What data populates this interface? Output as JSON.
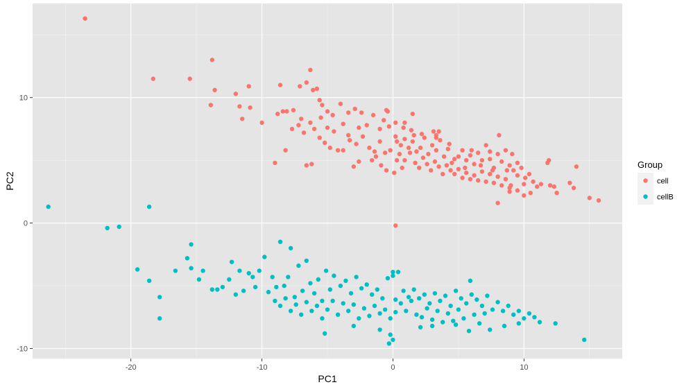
{
  "chart_data": {
    "type": "scatter",
    "xlabel": "PC1",
    "ylabel": "PC2",
    "xlim": [
      -27.5,
      17.5
    ],
    "ylim": [
      -10.8,
      17.5
    ],
    "x_ticks": [
      -20,
      -10,
      0,
      10
    ],
    "y_ticks": [
      -10,
      0,
      10
    ],
    "x_tick_labels": [
      "-20",
      "-10",
      "0",
      "10"
    ],
    "y_tick_labels": [
      "-10",
      "0",
      "10"
    ],
    "grid": true,
    "panel_background": "#e5e5e5",
    "grid_color": "#ffffff",
    "legend": {
      "title": "Group",
      "position": "right",
      "entries": [
        "cell",
        "cellB"
      ]
    },
    "series": [
      {
        "name": "cell",
        "color": "#f8766d",
        "points": [
          [
            -23.5,
            16.3
          ],
          [
            -18.3,
            11.5
          ],
          [
            -15.5,
            11.5
          ],
          [
            -13.8,
            13.0
          ],
          [
            -13.6,
            10.6
          ],
          [
            -13.9,
            9.4
          ],
          [
            -12.0,
            10.3
          ],
          [
            -11.0,
            10.9
          ],
          [
            -11.7,
            9.3
          ],
          [
            -10.9,
            9.2
          ],
          [
            -11.5,
            8.3
          ],
          [
            -10.0,
            8.0
          ],
          [
            -8.6,
            11.0
          ],
          [
            -8.8,
            8.7
          ],
          [
            -8.4,
            8.9
          ],
          [
            -8.1,
            8.9
          ],
          [
            -7.6,
            9.0
          ],
          [
            -7.1,
            10.9
          ],
          [
            -6.6,
            11.2
          ],
          [
            -6.3,
            12.2
          ],
          [
            -6.1,
            10.6
          ],
          [
            -5.8,
            10.7
          ],
          [
            -5.6,
            9.8
          ],
          [
            -5.4,
            9.4
          ],
          [
            -7.0,
            8.3
          ],
          [
            -7.7,
            7.5
          ],
          [
            -7.2,
            7.8
          ],
          [
            -6.8,
            7.2
          ],
          [
            -6.3,
            8.0
          ],
          [
            -6.0,
            7.5
          ],
          [
            -5.5,
            8.4
          ],
          [
            -5.0,
            8.9
          ],
          [
            -4.6,
            8.6
          ],
          [
            -4.0,
            9.5
          ],
          [
            -3.4,
            8.8
          ],
          [
            -2.9,
            9.1
          ],
          [
            -2.4,
            8.8
          ],
          [
            -5.0,
            7.6
          ],
          [
            -4.5,
            7.3
          ],
          [
            -3.8,
            7.9
          ],
          [
            -3.4,
            7.0
          ],
          [
            -2.6,
            7.6
          ],
          [
            -2.0,
            7.8
          ],
          [
            -1.5,
            8.6
          ],
          [
            -1.0,
            7.5
          ],
          [
            -0.7,
            8.2
          ],
          [
            -0.3,
            7.7
          ],
          [
            0.2,
            8.0
          ],
          [
            -0.5,
            9.0
          ],
          [
            -0.4,
            8.9
          ],
          [
            -5.6,
            6.8
          ],
          [
            -5.2,
            6.4
          ],
          [
            -4.8,
            6.0
          ],
          [
            -4.2,
            5.8
          ],
          [
            -3.8,
            5.8
          ],
          [
            -3.3,
            6.6
          ],
          [
            -2.8,
            6.3
          ],
          [
            -2.3,
            6.9
          ],
          [
            -1.8,
            6.0
          ],
          [
            -1.4,
            5.7
          ],
          [
            -1.0,
            6.5
          ],
          [
            -0.6,
            5.6
          ],
          [
            -0.2,
            5.8
          ],
          [
            -9.0,
            4.8
          ],
          [
            -8.2,
            5.8
          ],
          [
            -6.6,
            4.6
          ],
          [
            -6.2,
            4.7
          ],
          [
            -3.0,
            4.5
          ],
          [
            -2.6,
            4.9
          ],
          [
            -1.6,
            5.0
          ],
          [
            -1.3,
            5.3
          ],
          [
            -0.9,
            4.6
          ],
          [
            -0.5,
            4.2
          ],
          [
            0.1,
            4.0
          ],
          [
            0.7,
            4.4
          ],
          [
            0.3,
            5.0
          ],
          [
            0.3,
            6.5
          ],
          [
            0.6,
            6.2
          ],
          [
            0.9,
            6.7
          ],
          [
            1.2,
            6.0
          ],
          [
            1.5,
            6.5
          ],
          [
            1.8,
            5.7
          ],
          [
            2.1,
            6.0
          ],
          [
            2.4,
            6.8
          ],
          [
            2.7,
            5.5
          ],
          [
            3.0,
            6.2
          ],
          [
            3.3,
            5.8
          ],
          [
            3.6,
            6.6
          ],
          [
            3.9,
            5.3
          ],
          [
            4.2,
            5.9
          ],
          [
            0.5,
            5.5
          ],
          [
            0.9,
            5.0
          ],
          [
            1.3,
            5.6
          ],
          [
            1.7,
            4.8
          ],
          [
            2.0,
            4.4
          ],
          [
            2.3,
            5.2
          ],
          [
            2.6,
            4.7
          ],
          [
            2.9,
            4.2
          ],
          [
            3.2,
            4.9
          ],
          [
            3.5,
            4.5
          ],
          [
            3.8,
            3.9
          ],
          [
            4.1,
            4.6
          ],
          [
            4.4,
            4.2
          ],
          [
            4.7,
            5.1
          ],
          [
            0.9,
            8.0
          ],
          [
            1.4,
            7.4
          ],
          [
            1.6,
            7.0
          ],
          [
            2.2,
            7.1
          ],
          [
            3.1,
            7.3
          ],
          [
            3.3,
            7.0
          ],
          [
            1.5,
            8.7
          ],
          [
            0.2,
            6.9
          ],
          [
            0.8,
            7.6
          ],
          [
            5.0,
            5.3
          ],
          [
            5.3,
            5.8
          ],
          [
            5.6,
            5.0
          ],
          [
            5.9,
            5.4
          ],
          [
            6.2,
            4.7
          ],
          [
            6.5,
            5.6
          ],
          [
            6.8,
            5.0
          ],
          [
            7.1,
            6.2
          ],
          [
            7.4,
            5.1
          ],
          [
            7.7,
            4.4
          ],
          [
            8.0,
            5.5
          ],
          [
            8.3,
            4.9
          ],
          [
            8.6,
            5.8
          ],
          [
            8.9,
            4.6
          ],
          [
            5.0,
            4.3
          ],
          [
            5.3,
            3.6
          ],
          [
            5.6,
            4.0
          ],
          [
            5.9,
            3.5
          ],
          [
            6.2,
            3.8
          ],
          [
            6.5,
            3.4
          ],
          [
            6.8,
            4.1
          ],
          [
            7.1,
            3.3
          ],
          [
            7.4,
            3.9
          ],
          [
            7.7,
            3.2
          ],
          [
            8.0,
            3.7
          ],
          [
            8.3,
            3.0
          ],
          [
            8.6,
            3.5
          ],
          [
            8.9,
            2.8
          ],
          [
            9.2,
            4.2
          ],
          [
            9.5,
            3.8
          ],
          [
            9.8,
            4.4
          ],
          [
            10.1,
            3.6
          ],
          [
            10.4,
            3.9
          ],
          [
            10.7,
            3.3
          ],
          [
            11.0,
            2.9
          ],
          [
            11.3,
            3.1
          ],
          [
            9.0,
            3.0
          ],
          [
            9.5,
            2.6
          ],
          [
            10.0,
            2.2
          ],
          [
            10.5,
            2.4
          ],
          [
            8.0,
            1.6
          ],
          [
            8.9,
            2.5
          ],
          [
            12.0,
            3.0
          ],
          [
            12.3,
            2.9
          ],
          [
            12.5,
            2.4
          ],
          [
            13.5,
            3.2
          ],
          [
            13.8,
            2.8
          ],
          [
            14.0,
            4.5
          ],
          [
            11.8,
            4.8
          ],
          [
            11.9,
            5.0
          ],
          [
            8.1,
            7.0
          ],
          [
            9.1,
            5.5
          ],
          [
            9.5,
            4.8
          ],
          [
            6.0,
            5.8
          ],
          [
            4.3,
            6.3
          ],
          [
            3.5,
            7.3
          ],
          [
            15.0,
            2.0
          ],
          [
            15.7,
            1.8
          ],
          [
            0.2,
            -0.2
          ],
          [
            3.3,
            6.8
          ],
          [
            4.7,
            3.9
          ],
          [
            4.5,
            4.8
          ],
          [
            5.5,
            4.4
          ],
          [
            6.7,
            4.6
          ],
          [
            7.6,
            4.2
          ],
          [
            10.0,
            3.1
          ],
          [
            7.4,
            5.7
          ],
          [
            8.7,
            4.2
          ]
        ]
      },
      {
        "name": "cellB",
        "color": "#00bfc4",
        "points": [
          [
            -26.3,
            1.3
          ],
          [
            -18.6,
            1.3
          ],
          [
            -21.8,
            -0.4
          ],
          [
            -20.9,
            -0.3
          ],
          [
            -19.5,
            -3.7
          ],
          [
            -18.6,
            -4.6
          ],
          [
            -17.8,
            -5.9
          ],
          [
            -17.8,
            -7.6
          ],
          [
            -16.6,
            -3.8
          ],
          [
            -15.7,
            -2.8
          ],
          [
            -15.4,
            -1.7
          ],
          [
            -15.4,
            -3.6
          ],
          [
            -14.8,
            -4.5
          ],
          [
            -14.5,
            -3.8
          ],
          [
            -13.8,
            -5.3
          ],
          [
            -13.4,
            -5.3
          ],
          [
            -13.0,
            -5.1
          ],
          [
            -12.5,
            -4.5
          ],
          [
            -12.3,
            -3.1
          ],
          [
            -12.0,
            -5.7
          ],
          [
            -11.7,
            -3.8
          ],
          [
            -11.4,
            -5.4
          ],
          [
            -11.0,
            -4.0
          ],
          [
            -10.7,
            -4.3
          ],
          [
            -10.5,
            -5.1
          ],
          [
            -10.2,
            -3.8
          ],
          [
            -9.8,
            -2.7
          ],
          [
            -9.5,
            -5.5
          ],
          [
            -9.2,
            -4.3
          ],
          [
            -8.9,
            -5.1
          ],
          [
            -8.6,
            -1.5
          ],
          [
            -8.3,
            -5.0
          ],
          [
            -8.0,
            -4.3
          ],
          [
            -7.8,
            -2.0
          ],
          [
            -7.5,
            -5.9
          ],
          [
            -7.2,
            -3.4
          ],
          [
            -6.9,
            -5.4
          ],
          [
            -6.6,
            -3.0
          ],
          [
            -6.3,
            -4.8
          ],
          [
            -6.0,
            -5.6
          ],
          [
            -5.7,
            -4.5
          ],
          [
            -5.4,
            -6.2
          ],
          [
            -5.1,
            -3.8
          ],
          [
            -4.8,
            -5.3
          ],
          [
            -9.0,
            -6.2
          ],
          [
            -8.6,
            -6.6
          ],
          [
            -8.2,
            -6.0
          ],
          [
            -7.8,
            -7.0
          ],
          [
            -7.4,
            -6.5
          ],
          [
            -7.0,
            -7.3
          ],
          [
            -6.6,
            -6.3
          ],
          [
            -6.2,
            -7.0
          ],
          [
            -5.8,
            -6.6
          ],
          [
            -5.4,
            -7.6
          ],
          [
            -5.0,
            -6.9
          ],
          [
            -4.6,
            -6.2
          ],
          [
            -4.2,
            -7.3
          ],
          [
            -3.8,
            -6.4
          ],
          [
            -4.5,
            -4.2
          ],
          [
            -4.0,
            -5.0
          ],
          [
            -3.6,
            -4.6
          ],
          [
            -3.2,
            -5.6
          ],
          [
            -2.8,
            -4.3
          ],
          [
            -2.4,
            -5.2
          ],
          [
            -2.0,
            -4.9
          ],
          [
            -1.6,
            -5.7
          ],
          [
            -1.2,
            -5.3
          ],
          [
            -0.8,
            -6.0
          ],
          [
            -0.4,
            -4.4
          ],
          [
            0.0,
            -4.2
          ],
          [
            0.2,
            -6.1
          ],
          [
            0.4,
            -3.9
          ],
          [
            -3.4,
            -7.0
          ],
          [
            -3.0,
            -6.5
          ],
          [
            -2.6,
            -7.6
          ],
          [
            -2.2,
            -6.8
          ],
          [
            -1.8,
            -7.4
          ],
          [
            -1.4,
            -6.6
          ],
          [
            -1.0,
            -7.2
          ],
          [
            -0.6,
            -6.9
          ],
          [
            -0.2,
            -7.6
          ],
          [
            0.2,
            -7.1
          ],
          [
            0.6,
            -6.4
          ],
          [
            1.0,
            -7.0
          ],
          [
            1.4,
            -6.2
          ],
          [
            1.8,
            -7.3
          ],
          [
            0.8,
            -5.4
          ],
          [
            1.2,
            -5.9
          ],
          [
            1.6,
            -5.3
          ],
          [
            2.0,
            -6.0
          ],
          [
            2.4,
            -5.7
          ],
          [
            2.8,
            -6.4
          ],
          [
            3.2,
            -5.6
          ],
          [
            3.6,
            -6.2
          ],
          [
            4.0,
            -5.8
          ],
          [
            4.4,
            -6.6
          ],
          [
            4.8,
            -5.4
          ],
          [
            5.2,
            -6.0
          ],
          [
            5.6,
            -6.4
          ],
          [
            6.0,
            -5.7
          ],
          [
            2.2,
            -7.5
          ],
          [
            2.6,
            -6.8
          ],
          [
            3.0,
            -7.7
          ],
          [
            3.4,
            -7.0
          ],
          [
            3.8,
            -7.9
          ],
          [
            4.2,
            -7.2
          ],
          [
            4.6,
            -7.8
          ],
          [
            5.0,
            -6.9
          ],
          [
            5.4,
            -7.6
          ],
          [
            5.8,
            -8.6
          ],
          [
            6.2,
            -7.3
          ],
          [
            6.6,
            -8.0
          ],
          [
            7.0,
            -7.2
          ],
          [
            7.4,
            -8.5
          ],
          [
            6.4,
            -6.1
          ],
          [
            6.8,
            -6.6
          ],
          [
            7.2,
            -5.8
          ],
          [
            7.6,
            -6.9
          ],
          [
            8.0,
            -6.3
          ],
          [
            8.4,
            -7.0
          ],
          [
            8.8,
            -6.6
          ],
          [
            9.2,
            -7.3
          ],
          [
            9.6,
            -7.0
          ],
          [
            10.0,
            -7.6
          ],
          [
            10.4,
            -7.2
          ],
          [
            10.8,
            -7.5
          ],
          [
            11.2,
            -7.9
          ],
          [
            12.4,
            -8.0
          ],
          [
            -5.2,
            -8.8
          ],
          [
            -3.0,
            -8.2
          ],
          [
            -1.0,
            -8.5
          ],
          [
            -0.2,
            -8.9
          ],
          [
            -0.3,
            -9.6
          ],
          [
            0.0,
            -9.3
          ],
          [
            2.1,
            -8.3
          ],
          [
            4.8,
            -8.1
          ],
          [
            3.0,
            -8.2
          ],
          [
            8.5,
            -8.2
          ],
          [
            9.6,
            -8.0
          ],
          [
            14.6,
            -9.3
          ],
          [
            5.9,
            -4.6
          ],
          [
            0.0,
            -3.9
          ]
        ]
      }
    ]
  }
}
